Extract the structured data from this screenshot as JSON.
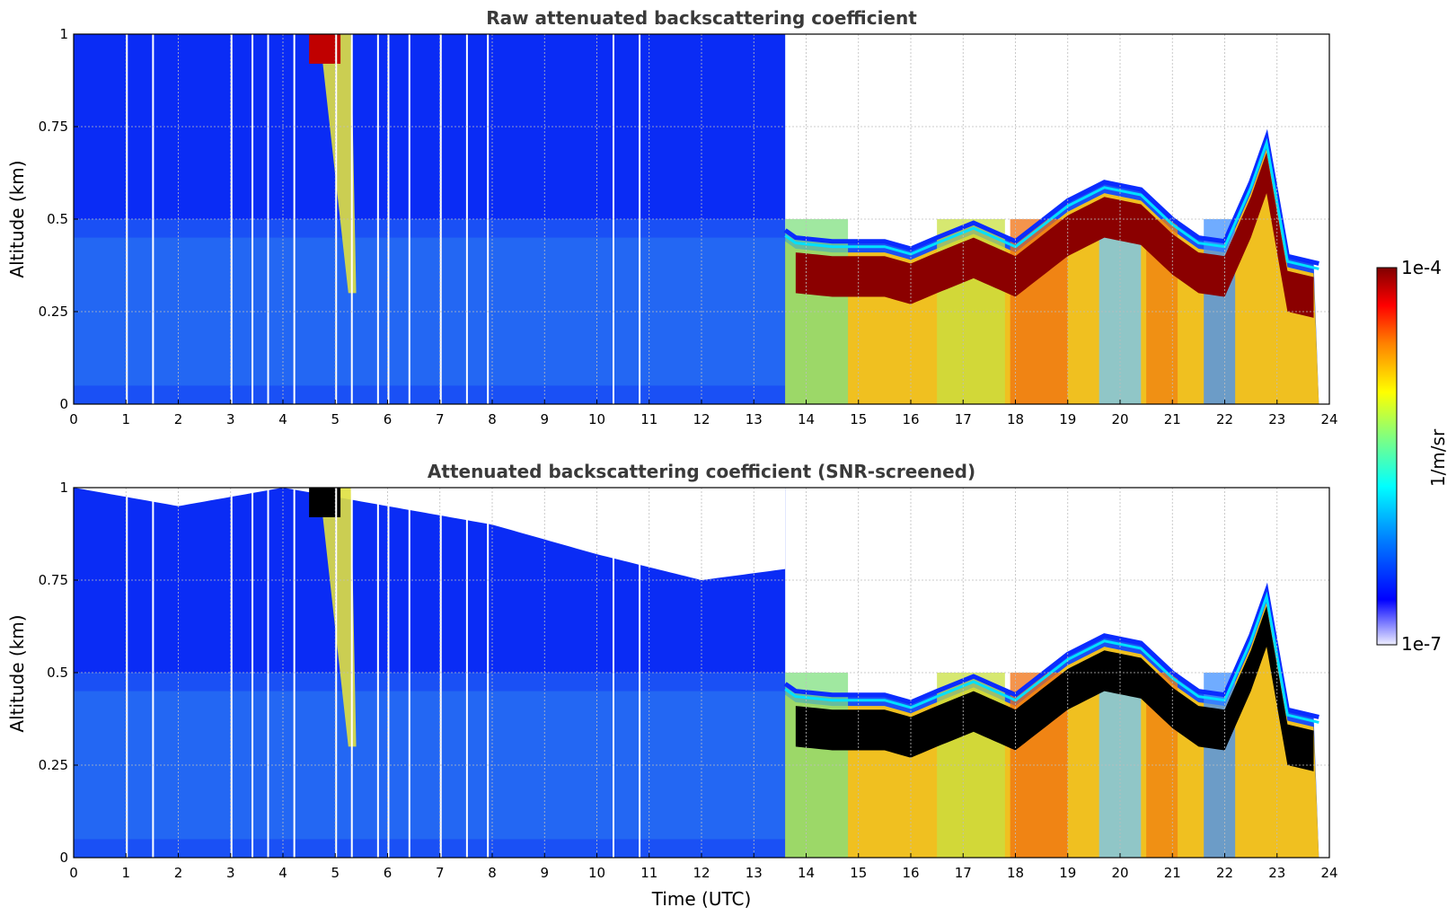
{
  "chart_data": [
    {
      "type": "heatmap",
      "title": "Raw attenuated backscattering coefficient",
      "xlabel": "",
      "ylabel": "Altitude (km)",
      "xlim": [
        0,
        24
      ],
      "ylim": [
        0,
        1
      ],
      "x_ticks": [
        "0",
        "1",
        "2",
        "3",
        "4",
        "5",
        "6",
        "7",
        "8",
        "9",
        "10",
        "11",
        "12",
        "13",
        "14",
        "15",
        "16",
        "17",
        "18",
        "19",
        "20",
        "21",
        "22",
        "23",
        "24"
      ],
      "y_ticks": [
        "0",
        "0.25",
        "0.5",
        "0.75",
        "1"
      ],
      "grid": true,
      "screened": false,
      "layer_top_km": {
        "x": [
          0,
          4,
          8,
          12,
          13.6,
          13.8,
          14.5,
          15.5,
          16,
          16.5,
          17.2,
          18,
          19,
          19.7,
          20.4,
          21,
          21.5,
          22,
          22.5,
          22.8,
          23.2,
          23.8
        ],
        "y": [
          0.5,
          0.5,
          0.5,
          0.48,
          0.47,
          0.45,
          0.44,
          0.44,
          0.42,
          0.45,
          0.49,
          0.44,
          0.55,
          0.6,
          0.58,
          0.5,
          0.45,
          0.44,
          0.6,
          0.72,
          0.4,
          0.38
        ]
      },
      "colorbar": {
        "label": "1/m/sr",
        "min_label": "1e-7",
        "max_label": "1e-4",
        "scale": "log"
      }
    },
    {
      "type": "heatmap",
      "title": "Attenuated backscattering coefficient (SNR-screened)",
      "xlabel": "Time (UTC)",
      "ylabel": "Altitude (km)",
      "xlim": [
        0,
        24
      ],
      "ylim": [
        0,
        1
      ],
      "x_ticks": [
        "0",
        "1",
        "2",
        "3",
        "4",
        "5",
        "6",
        "7",
        "8",
        "9",
        "10",
        "11",
        "12",
        "13",
        "14",
        "15",
        "16",
        "17",
        "18",
        "19",
        "20",
        "21",
        "22",
        "23",
        "24"
      ],
      "y_ticks": [
        "0",
        "0.25",
        "0.5",
        "0.75",
        "1"
      ],
      "grid": true,
      "screened": true,
      "snr_valid_top_km": {
        "x": [
          0,
          2,
          4,
          6,
          8,
          10,
          12,
          13.6,
          13.8,
          24
        ],
        "y": [
          1.0,
          0.95,
          1.0,
          0.95,
          0.9,
          0.82,
          0.75,
          0.78,
          0.47,
          0.42
        ]
      },
      "colorbar": {
        "label": "1/m/sr",
        "min_label": "1e-7",
        "max_label": "1e-4",
        "scale": "log"
      }
    }
  ],
  "colors": {
    "colormap": [
      "#eeeeff",
      "#0000ff",
      "#0080ff",
      "#00ffff",
      "#80ff80",
      "#ffff00",
      "#ff8000",
      "#ff0000",
      "#800000"
    ],
    "saturated_screened": "#000000",
    "title_text": "#3a3a3a"
  }
}
